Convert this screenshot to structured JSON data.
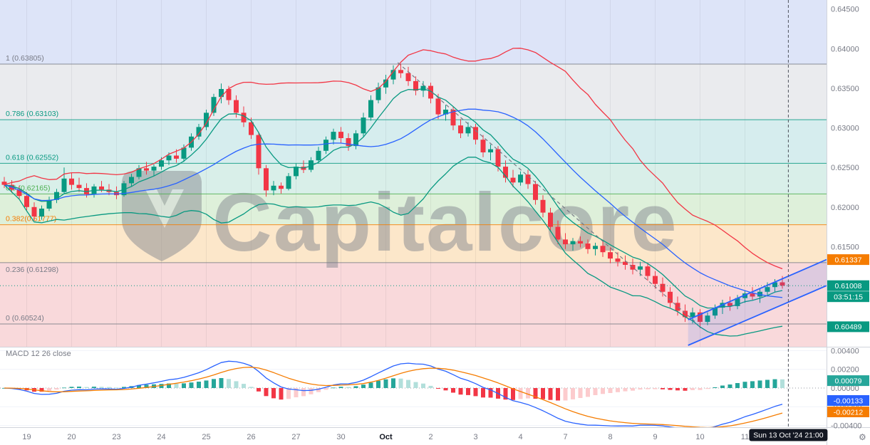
{
  "chart_data": {
    "type": "candlestick",
    "watermark": "Capitalcore",
    "current_time_label": "Sun 13 Oct '24 21:00",
    "icons": {
      "settings": "⚙"
    },
    "colors": {
      "up": "#089981",
      "down": "#f23645",
      "band_upper": "#f23645",
      "band_mid": "#2962ff",
      "band_lower": "#089981",
      "ema_fast": "#089981",
      "macd_line": "#2962ff",
      "macd_signal": "#f57c00",
      "channel": "#2962ff",
      "axis_text": "#787b86"
    },
    "y_ticks": [
      {
        "text": "0.64500",
        "price": 0.645
      },
      {
        "text": "0.64000",
        "price": 0.64
      },
      {
        "text": "0.63500",
        "price": 0.635
      },
      {
        "text": "0.63000",
        "price": 0.63
      },
      {
        "text": "0.62500",
        "price": 0.625
      },
      {
        "text": "0.62000",
        "price": 0.62
      },
      {
        "text": "0.61500",
        "price": 0.615
      }
    ],
    "x_ticks": [
      {
        "label": "19",
        "i": 3
      },
      {
        "label": "20",
        "i": 9
      },
      {
        "label": "23",
        "i": 15
      },
      {
        "label": "24",
        "i": 21
      },
      {
        "label": "25",
        "i": 27
      },
      {
        "label": "26",
        "i": 33
      },
      {
        "label": "27",
        "i": 39
      },
      {
        "label": "30",
        "i": 45
      },
      {
        "label": "Oct",
        "i": 51
      },
      {
        "label": "2",
        "i": 57
      },
      {
        "label": "3",
        "i": 63
      },
      {
        "label": "4",
        "i": 69
      },
      {
        "label": "7",
        "i": 75
      },
      {
        "label": "8",
        "i": 81
      },
      {
        "label": "9",
        "i": 87
      },
      {
        "label": "10",
        "i": 93
      },
      {
        "label": "11",
        "i": 99
      }
    ],
    "fib": {
      "levels": [
        {
          "label": "1 (0.63805)",
          "price": 0.63805,
          "color": "#787b86"
        },
        {
          "label": "0.786 (0.63103)",
          "price": 0.63103,
          "color": "#089981"
        },
        {
          "label": "0.618 (0.62552)",
          "price": 0.62552,
          "color": "#089981"
        },
        {
          "label": "0.5 (0.62165)",
          "price": 0.62165,
          "color": "#4caf50"
        },
        {
          "label": "0.382(0.61777)",
          "price": 0.61777,
          "color": "#f57c00"
        },
        {
          "label": "0.236 (0.61298)",
          "price": 0.61298,
          "color": "#787b86",
          "below": true
        },
        {
          "label": "0 (0.60524)",
          "price": 0.60524,
          "color": "#787b86"
        }
      ],
      "bands": [
        {
          "from": 0.647,
          "to": 0.63805,
          "color": "#dde4f8"
        },
        {
          "from": 0.63805,
          "to": 0.63103,
          "color": "#eaebee"
        },
        {
          "from": 0.63103,
          "to": 0.62552,
          "color": "#d6edee"
        },
        {
          "from": 0.62552,
          "to": 0.62165,
          "color": "#d9efe9"
        },
        {
          "from": 0.62165,
          "to": 0.61777,
          "color": "#def0da"
        },
        {
          "from": 0.61777,
          "to": 0.61298,
          "color": "#fce7ca"
        },
        {
          "from": 0.61298,
          "to": 0.60524,
          "color": "#f9d9db"
        },
        {
          "from": 0.60524,
          "to": 0.601,
          "color": "#f9d9db"
        }
      ]
    },
    "price_labels": [
      {
        "text": "0.61337",
        "price": 0.61337,
        "bg": "#f57c00"
      },
      {
        "text": "0.61008",
        "price": 0.61008,
        "bg": "#089981",
        "countdown": "03:51:15"
      },
      {
        "text": "0.60489",
        "price": 0.60489,
        "bg": "#089981"
      }
    ],
    "macd": {
      "title": "MACD 12 26 close",
      "y_ticks": [
        {
          "text": "0.00400",
          "value": 0.004
        },
        {
          "text": "0.00200",
          "value": 0.002
        },
        {
          "text": "0.00000",
          "value": 0
        },
        {
          "text": "-0.00200",
          "value": -0.002
        },
        {
          "text": "-0.00400",
          "value": -0.004
        }
      ],
      "value_labels": [
        {
          "text": "0.00079",
          "value": 0.00079,
          "bg": "#26a69a"
        },
        {
          "text": "-0.00133",
          "value": -0.00133,
          "bg": "#2962ff"
        },
        {
          "text": "-0.00212",
          "value": -0.00212,
          "bg": "#f57c00"
        }
      ]
    },
    "drawings": {
      "trendline": {
        "start_index": 52.6,
        "start_price": 0.63823,
        "end_index": 92.3,
        "end_price": 0.60556
      },
      "channel": {
        "start_index": 91.4,
        "upper_start_price": 0.60578,
        "lower_start_price": 0.60254,
        "upper_end_price": 0.61337,
        "lower_end_price": 0.61008
      },
      "current_time_index": 104.8
    },
    "candles": [
      [
        0.6232,
        0.6238,
        0.6224,
        0.6228
      ],
      [
        0.6228,
        0.6234,
        0.6218,
        0.6222
      ],
      [
        0.6222,
        0.6227,
        0.621,
        0.6214
      ],
      [
        0.6214,
        0.6219,
        0.6196,
        0.62
      ],
      [
        0.62,
        0.6206,
        0.6183,
        0.6188
      ],
      [
        0.6188,
        0.6202,
        0.6184,
        0.6198
      ],
      [
        0.6198,
        0.6213,
        0.6195,
        0.6209
      ],
      [
        0.6209,
        0.6223,
        0.6205,
        0.6219
      ],
      [
        0.6219,
        0.625,
        0.6216,
        0.6236
      ],
      [
        0.6236,
        0.6243,
        0.6222,
        0.6228
      ],
      [
        0.6228,
        0.6237,
        0.6219,
        0.6224
      ],
      [
        0.6224,
        0.623,
        0.6212,
        0.6216
      ],
      [
        0.6216,
        0.6229,
        0.6212,
        0.6226
      ],
      [
        0.6226,
        0.6233,
        0.6219,
        0.6222
      ],
      [
        0.6222,
        0.6229,
        0.6215,
        0.6219
      ],
      [
        0.6219,
        0.6226,
        0.621,
        0.6215
      ],
      [
        0.6215,
        0.6233,
        0.6213,
        0.623
      ],
      [
        0.623,
        0.6242,
        0.6226,
        0.6238
      ],
      [
        0.6238,
        0.6253,
        0.6235,
        0.6249
      ],
      [
        0.6249,
        0.6257,
        0.6241,
        0.6246
      ],
      [
        0.6246,
        0.6254,
        0.6239,
        0.6251
      ],
      [
        0.6251,
        0.6263,
        0.6247,
        0.6259
      ],
      [
        0.6259,
        0.6269,
        0.6253,
        0.6265
      ],
      [
        0.6265,
        0.6273,
        0.6256,
        0.6261
      ],
      [
        0.6261,
        0.6279,
        0.6257,
        0.6275
      ],
      [
        0.6275,
        0.6293,
        0.6271,
        0.6289
      ],
      [
        0.6289,
        0.6305,
        0.6285,
        0.6301
      ],
      [
        0.6301,
        0.6323,
        0.6297,
        0.6319
      ],
      [
        0.6319,
        0.6343,
        0.6315,
        0.6339
      ],
      [
        0.6339,
        0.6356,
        0.6331,
        0.6349
      ],
      [
        0.6349,
        0.6353,
        0.6329,
        0.6335
      ],
      [
        0.6335,
        0.6341,
        0.6313,
        0.6319
      ],
      [
        0.6319,
        0.6327,
        0.6301,
        0.6307
      ],
      [
        0.6307,
        0.6313,
        0.6286,
        0.6291
      ],
      [
        0.6291,
        0.6295,
        0.6241,
        0.6249
      ],
      [
        0.6249,
        0.6253,
        0.6213,
        0.6221
      ],
      [
        0.6221,
        0.6233,
        0.6215,
        0.6227
      ],
      [
        0.6227,
        0.6231,
        0.6217,
        0.6223
      ],
      [
        0.6223,
        0.6243,
        0.6221,
        0.6239
      ],
      [
        0.6239,
        0.6255,
        0.6235,
        0.6251
      ],
      [
        0.6251,
        0.6259,
        0.6243,
        0.6247
      ],
      [
        0.6247,
        0.6263,
        0.6244,
        0.6259
      ],
      [
        0.6259,
        0.6276,
        0.6255,
        0.6271
      ],
      [
        0.6271,
        0.6289,
        0.6267,
        0.6285
      ],
      [
        0.6285,
        0.6299,
        0.6279,
        0.6295
      ],
      [
        0.6295,
        0.6301,
        0.6281,
        0.6287
      ],
      [
        0.6287,
        0.6293,
        0.6271,
        0.6277
      ],
      [
        0.6277,
        0.6297,
        0.6273,
        0.6293
      ],
      [
        0.6293,
        0.6319,
        0.6289,
        0.6313
      ],
      [
        0.6313,
        0.6341,
        0.6309,
        0.6335
      ],
      [
        0.6335,
        0.6357,
        0.6331,
        0.6351
      ],
      [
        0.6351,
        0.6367,
        0.6343,
        0.6361
      ],
      [
        0.6361,
        0.6379,
        0.6355,
        0.6373
      ],
      [
        0.6373,
        0.6381,
        0.6363,
        0.6369
      ],
      [
        0.6369,
        0.6377,
        0.6353,
        0.6359
      ],
      [
        0.6359,
        0.6365,
        0.6341,
        0.6347
      ],
      [
        0.6347,
        0.6359,
        0.6339,
        0.6353
      ],
      [
        0.6353,
        0.6357,
        0.6331,
        0.6337
      ],
      [
        0.6337,
        0.6343,
        0.6311,
        0.6317
      ],
      [
        0.6317,
        0.6329,
        0.6309,
        0.6323
      ],
      [
        0.6323,
        0.6327,
        0.6297,
        0.6303
      ],
      [
        0.6303,
        0.6311,
        0.6287,
        0.6293
      ],
      [
        0.6293,
        0.6307,
        0.6289,
        0.6301
      ],
      [
        0.6301,
        0.6305,
        0.6279,
        0.6285
      ],
      [
        0.6285,
        0.6291,
        0.6263,
        0.6269
      ],
      [
        0.6269,
        0.6279,
        0.6259,
        0.6273
      ],
      [
        0.6273,
        0.6277,
        0.6245,
        0.6251
      ],
      [
        0.6251,
        0.6259,
        0.6231,
        0.6237
      ],
      [
        0.6237,
        0.6247,
        0.6225,
        0.6231
      ],
      [
        0.6231,
        0.6245,
        0.6227,
        0.6241
      ],
      [
        0.6241,
        0.6247,
        0.6223,
        0.6229
      ],
      [
        0.6229,
        0.6233,
        0.6203,
        0.6209
      ],
      [
        0.6209,
        0.6215,
        0.6187,
        0.6193
      ],
      [
        0.6193,
        0.6199,
        0.6169,
        0.6175
      ],
      [
        0.6175,
        0.6183,
        0.6153,
        0.6159
      ],
      [
        0.6159,
        0.6167,
        0.6147,
        0.6153
      ],
      [
        0.6153,
        0.6161,
        0.6145,
        0.6157
      ],
      [
        0.6157,
        0.6163,
        0.6149,
        0.6154
      ],
      [
        0.6154,
        0.6159,
        0.6141,
        0.6147
      ],
      [
        0.6147,
        0.6155,
        0.6139,
        0.6151
      ],
      [
        0.6151,
        0.6157,
        0.6137,
        0.6143
      ],
      [
        0.6143,
        0.6149,
        0.6129,
        0.6135
      ],
      [
        0.6135,
        0.6143,
        0.6125,
        0.6131
      ],
      [
        0.6131,
        0.6139,
        0.6121,
        0.6127
      ],
      [
        0.6127,
        0.6135,
        0.6115,
        0.6121
      ],
      [
        0.6121,
        0.6131,
        0.6113,
        0.6125
      ],
      [
        0.6125,
        0.6129,
        0.6107,
        0.6113
      ],
      [
        0.6113,
        0.6119,
        0.6097,
        0.6103
      ],
      [
        0.6103,
        0.6111,
        0.6087,
        0.6093
      ],
      [
        0.6093,
        0.6099,
        0.6073,
        0.6079
      ],
      [
        0.6079,
        0.6087,
        0.6063,
        0.6069
      ],
      [
        0.6069,
        0.6077,
        0.6055,
        0.6061
      ],
      [
        0.6061,
        0.6073,
        0.6053,
        0.6067
      ],
      [
        0.6067,
        0.6071,
        0.6047,
        0.6055
      ],
      [
        0.6055,
        0.6067,
        0.6051,
        0.6063
      ],
      [
        0.6063,
        0.6077,
        0.6059,
        0.6073
      ],
      [
        0.6073,
        0.6083,
        0.6065,
        0.6079
      ],
      [
        0.6079,
        0.6087,
        0.6069,
        0.6075
      ],
      [
        0.6075,
        0.6089,
        0.6071,
        0.6085
      ],
      [
        0.6085,
        0.6095,
        0.6079,
        0.6091
      ],
      [
        0.6091,
        0.6099,
        0.6083,
        0.6087
      ],
      [
        0.6087,
        0.6097,
        0.6079,
        0.6093
      ],
      [
        0.6093,
        0.6105,
        0.6087,
        0.6099
      ],
      [
        0.6099,
        0.6109,
        0.6093,
        0.6105
      ],
      [
        0.6105,
        0.6113,
        0.6097,
        0.61008
      ]
    ]
  }
}
